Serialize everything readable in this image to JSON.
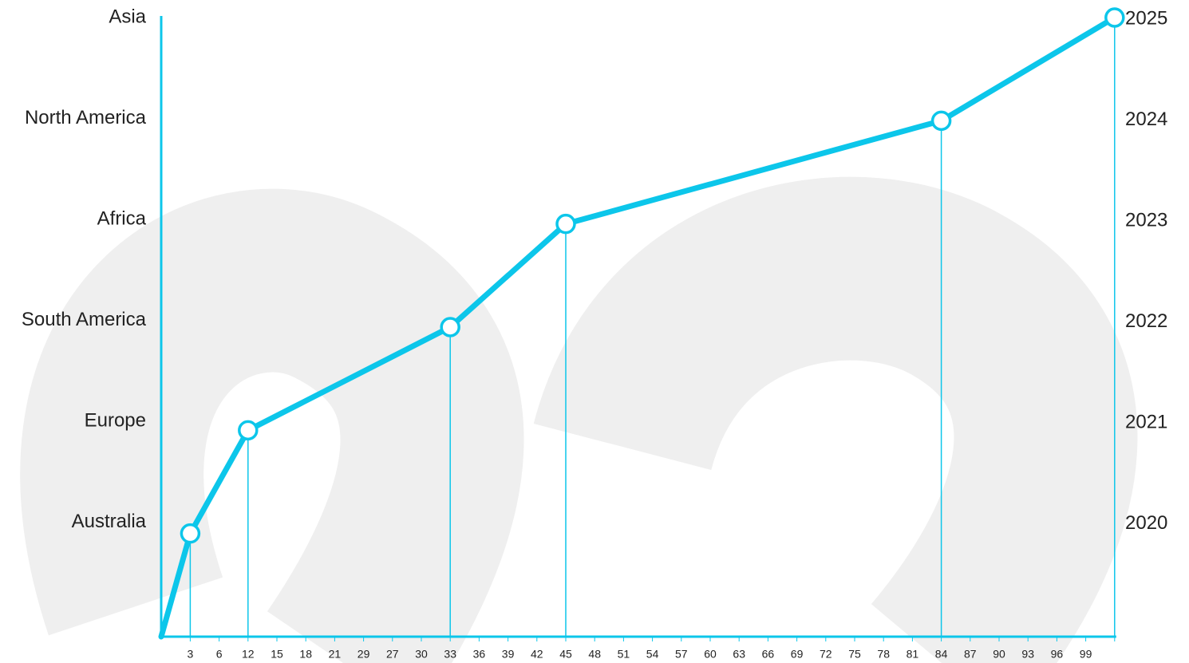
{
  "chart_data": {
    "type": "line",
    "color": "#0cc6ea",
    "categories": [
      "3",
      "6",
      "12",
      "15",
      "18",
      "21",
      "29",
      "27",
      "30",
      "33",
      "36",
      "39",
      "42",
      "45",
      "48",
      "51",
      "54",
      "57",
      "60",
      "63",
      "66",
      "69",
      "72",
      "75",
      "78",
      "81",
      "84",
      "87",
      "90",
      "93",
      "96",
      "99",
      null
    ],
    "series": [
      {
        "values": [
          1,
          null,
          2,
          null,
          null,
          null,
          null,
          null,
          null,
          3,
          null,
          null,
          null,
          4,
          null,
          null,
          null,
          null,
          null,
          null,
          null,
          null,
          null,
          null,
          null,
          null,
          5,
          null,
          null,
          null,
          null,
          null,
          6
        ]
      }
    ],
    "ylim": [
      0,
      6
    ],
    "yticks": [
      {
        "value": 1,
        "label": "Australia"
      },
      {
        "value": 2,
        "label": "Europe"
      },
      {
        "value": 3,
        "label": "South America"
      },
      {
        "value": 4,
        "label": "Africa"
      },
      {
        "value": 5,
        "label": "North America"
      },
      {
        "value": 6,
        "label": "Asia"
      }
    ],
    "y2lim": [
      0,
      6
    ],
    "y2ticks": [
      {
        "value": 1,
        "label": "2020"
      },
      {
        "value": 2,
        "label": "2021"
      },
      {
        "value": 3,
        "label": "2022"
      },
      {
        "value": 4,
        "label": "2023"
      },
      {
        "value": 5,
        "label": "2024"
      },
      {
        "value": 6,
        "label": "2025"
      }
    ]
  }
}
